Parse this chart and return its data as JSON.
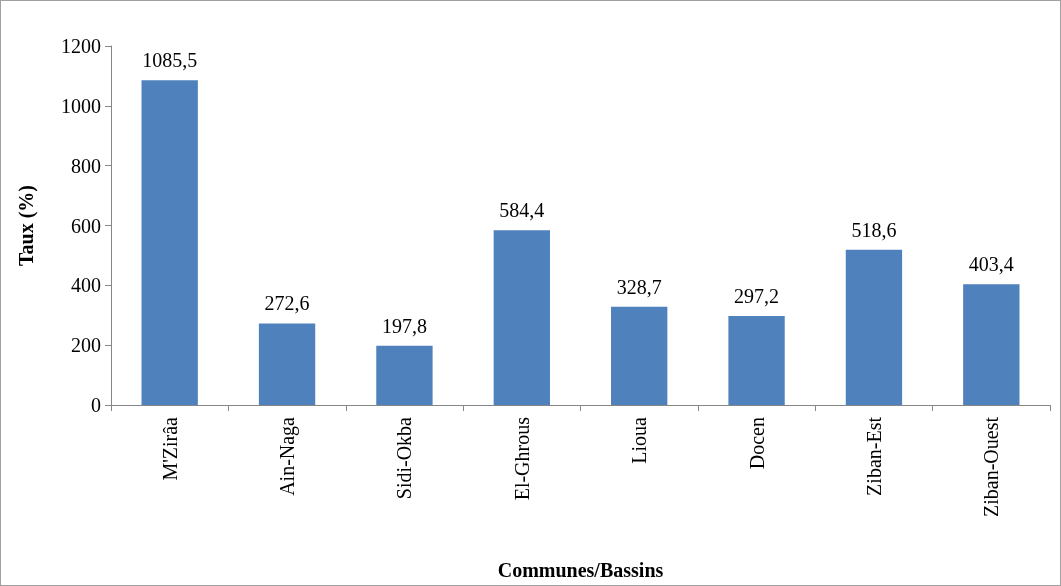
{
  "chart_data": {
    "type": "bar",
    "xlabel": "Communes/Bassins",
    "ylabel": "Taux (%)",
    "categories": [
      "M'Zirâa",
      "Ain-Naga",
      "Sidi-Okba",
      "El-Ghrous",
      "Lioua",
      "Docen",
      "Ziban-Est",
      "Ziban-Ouest"
    ],
    "values": [
      1085.5,
      272.6,
      197.8,
      584.4,
      328.7,
      297.2,
      518.6,
      403.4
    ],
    "value_labels": [
      "1085,5",
      "272,6",
      "197,8",
      "584,4",
      "328,7",
      "297,2",
      "518,6",
      "403,4"
    ],
    "color": "#4f81bd",
    "ylim": [
      0,
      1200
    ],
    "yticks": [
      0,
      200,
      400,
      600,
      800,
      1000,
      1200
    ],
    "grid": false
  }
}
